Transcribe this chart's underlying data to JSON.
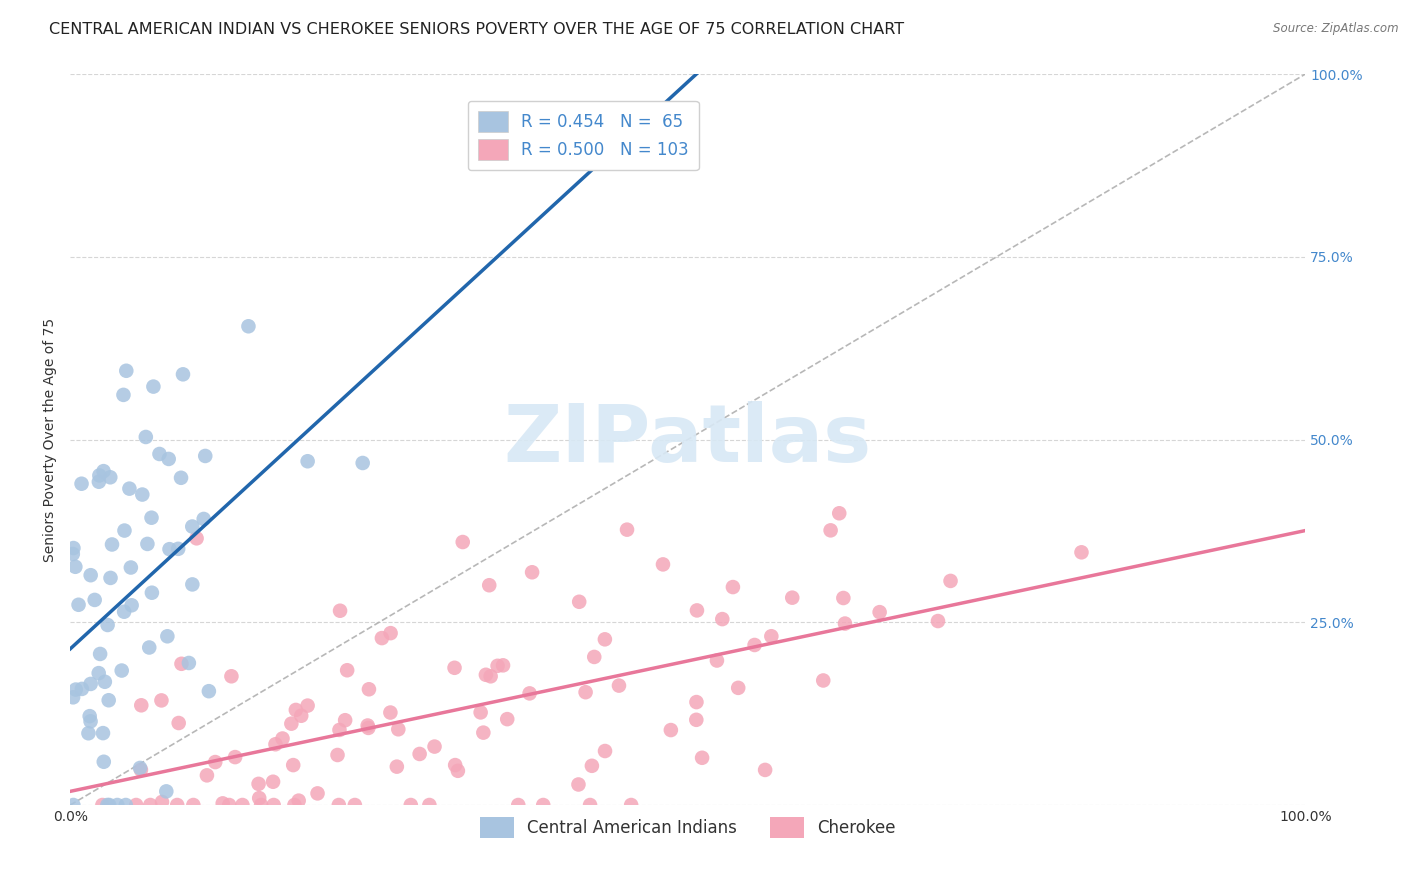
{
  "title": "CENTRAL AMERICAN INDIAN VS CHEROKEE SENIORS POVERTY OVER THE AGE OF 75 CORRELATION CHART",
  "source": "Source: ZipAtlas.com",
  "ylabel": "Seniors Poverty Over the Age of 75",
  "legend_labels": [
    "Central American Indians",
    "Cherokee"
  ],
  "r1": 0.454,
  "n1": 65,
  "r2": 0.5,
  "n2": 103,
  "color1": "#a8c4e0",
  "color2": "#f4a7b9",
  "line_color1": "#2166ac",
  "line_color2": "#e8779a",
  "diagonal_color": "#b0b0b0",
  "watermark": "ZIPatlas",
  "title_fontsize": 11.5,
  "label_fontsize": 10,
  "tick_fontsize": 10,
  "legend_fontsize": 12,
  "background_color": "#ffffff",
  "grid_color": "#cccccc",
  "xlim": [
    0,
    1.0
  ],
  "ylim": [
    0,
    1.0
  ],
  "x_ticks": [
    0.0,
    0.25,
    0.5,
    0.75,
    1.0
  ],
  "y_ticks": [
    0.0,
    0.25,
    0.5,
    0.75,
    1.0
  ],
  "x_tick_labels": [
    "0.0%",
    "",
    "",
    "",
    "100.0%"
  ],
  "y_tick_labels_right": [
    "",
    "25.0%",
    "50.0%",
    "75.0%",
    "100.0%"
  ]
}
